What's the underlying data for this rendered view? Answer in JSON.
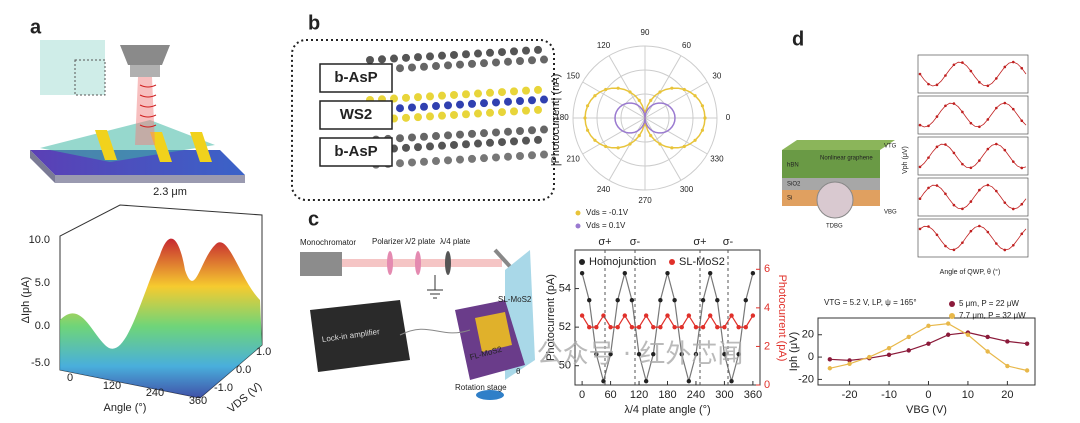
{
  "panel_a": {
    "label": "a",
    "scale_label": "2.3 μm",
    "z_label": "ΔIph (μA)",
    "z_ticks": [
      "10.0",
      "5.0",
      "0.0",
      "-5.0"
    ],
    "x_label": "Angle (°)",
    "x_ticks": [
      "0",
      "120",
      "240",
      "360"
    ],
    "y_label": "VDS (V)",
    "y_ticks": [
      "1.0",
      "0.0",
      "-1.0"
    ]
  },
  "panel_b": {
    "label": "b",
    "layers": [
      "b-AsP",
      "WS2",
      "b-AsP"
    ],
    "polar_angles": [
      "90",
      "60",
      "30",
      "0",
      "330",
      "300",
      "270",
      "240",
      "210",
      "180",
      "150",
      "120"
    ],
    "y_label": "|Photocurrent| (nA)",
    "legend": [
      "Vds = -0.1V",
      "Vds = 0.1V"
    ]
  },
  "panel_c": {
    "label": "c",
    "setup_labels": {
      "monochromator": "Monochromator",
      "polarizer": "Polarizer",
      "half_wave": "λ/2 plate",
      "quarter_wave": "λ/4 plate",
      "sl": "SL-MoS2",
      "fl": "FL-MoS2",
      "lockin": "Lock-in amplifier",
      "stage": "Rotation stage",
      "theta": "θ"
    },
    "chart": {
      "type": "line",
      "x_label": "λ/4 plate angle (°)",
      "y_label": "Photocurrent (pA)",
      "y2_label": "Photocurrent (pA)",
      "annotations": [
        "σ+",
        "σ-",
        "σ+",
        "σ-"
      ],
      "x": [
        0,
        15,
        30,
        45,
        60,
        75,
        90,
        105,
        120,
        135,
        150,
        165,
        180,
        195,
        210,
        225,
        240,
        255,
        270,
        285,
        300,
        315,
        330,
        345,
        360
      ],
      "series": [
        {
          "name": "Homojunction",
          "color": "#222222",
          "values": [
            54.8,
            53.4,
            50.6,
            49.2,
            50.6,
            53.4,
            54.8,
            53.4,
            50.6,
            49.2,
            50.6,
            53.4,
            54.8,
            53.4,
            50.6,
            49.2,
            50.6,
            53.4,
            54.8,
            53.4,
            50.6,
            49.2,
            50.6,
            53.4,
            54.8
          ]
        },
        {
          "name": "SL-MoS2",
          "color": "#e0302a",
          "axis": "y2",
          "values": [
            3.6,
            3.0,
            3.0,
            3.6,
            3.0,
            3.0,
            3.6,
            3.0,
            3.0,
            3.6,
            3.0,
            3.0,
            3.6,
            3.0,
            3.0,
            3.6,
            3.0,
            3.0,
            3.6,
            3.0,
            3.0,
            3.6,
            3.0,
            3.0,
            3.6
          ]
        }
      ],
      "xlim": [
        -15,
        375
      ],
      "xticks": [
        0,
        60,
        120,
        180,
        240,
        300,
        360
      ],
      "ylim": [
        49,
        56
      ],
      "yticks": [
        50,
        52,
        54
      ],
      "y2lim": [
        0,
        7
      ],
      "y2ticks": [
        0,
        2,
        4,
        6
      ]
    }
  },
  "panel_d": {
    "label": "d",
    "device_labels": [
      "Nonlinear graphene",
      "hBN",
      "SiO2",
      "Si",
      "TDBG",
      "VTG",
      "VBG"
    ],
    "inset_x_label": "Angle of QWP, θ (°)",
    "inset_y_label": "Vph (μV)",
    "chart": {
      "type": "line",
      "annotation": "VTG = 5.2 V, LP, ψ = 165°",
      "x_label": "VBG (V)",
      "y_label": "Iph (μV)",
      "x": [
        -25,
        -20,
        -15,
        -10,
        -5,
        0,
        5,
        10,
        15,
        20,
        25
      ],
      "series": [
        {
          "name": "5 μm, P = 22 μW",
          "color": "#8b1a3a",
          "values": [
            -2,
            -3,
            -1,
            2,
            6,
            12,
            20,
            22,
            18,
            14,
            12
          ]
        },
        {
          "name": "7.7 μm, P = 32 μW",
          "color": "#e8b84a",
          "values": [
            -10,
            -6,
            0,
            8,
            18,
            28,
            30,
            20,
            5,
            -8,
            -12
          ]
        }
      ],
      "xlim": [
        -28,
        27
      ],
      "xticks": [
        -20,
        -10,
        0,
        10,
        20
      ],
      "ylim": [
        -25,
        35
      ],
      "yticks": [
        -20,
        0,
        20
      ]
    }
  },
  "watermark": "公众号 · 红外芯闻"
}
